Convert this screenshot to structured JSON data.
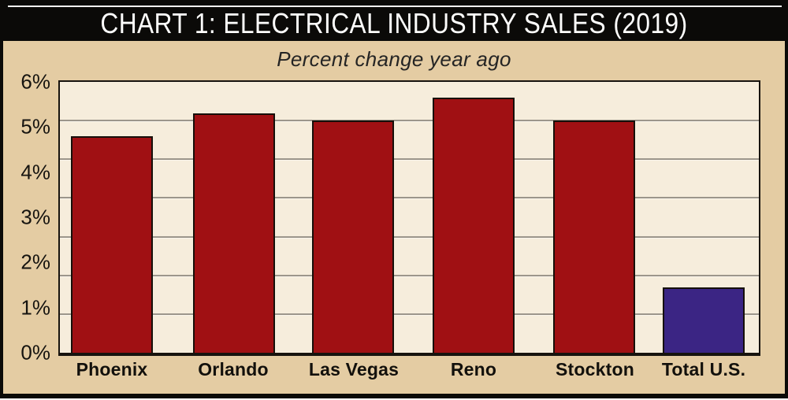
{
  "header": {
    "title": "CHART 1: ELECTRICAL INDUSTRY SALES (2019)"
  },
  "chart_data": {
    "type": "bar",
    "title": "CHART 1: ELECTRICAL INDUSTRY SALES (2019)",
    "subtitle": "Percent change year ago",
    "categories": [
      "Phoenix",
      "Orlando",
      "Las Vegas",
      "Reno",
      "Stockton",
      "Total U.S."
    ],
    "values": [
      4.8,
      5.3,
      5.15,
      5.65,
      5.15,
      1.45
    ],
    "bar_colors": [
      "#a01013",
      "#a01013",
      "#a01013",
      "#a01013",
      "#a01013",
      "#3b2584"
    ],
    "y_ticks": [
      "6%",
      "5%",
      "4%",
      "3%",
      "2%",
      "1%",
      "0%"
    ],
    "ylim": [
      0,
      6
    ],
    "xlabel": "",
    "ylabel": "",
    "legend": "none",
    "grid": "horizontal",
    "grid_band_count": 7,
    "colors": {
      "bar_red": "#a01013",
      "total_bar_purple": "#3b2584",
      "panel_tan": "#e4cca3",
      "plot_cream": "#f6eddc",
      "gridline_gray": "#9c968b",
      "title_bg": "#0b0a08",
      "title_text": "#fdfdfc",
      "text_dark": "#12100c"
    }
  }
}
